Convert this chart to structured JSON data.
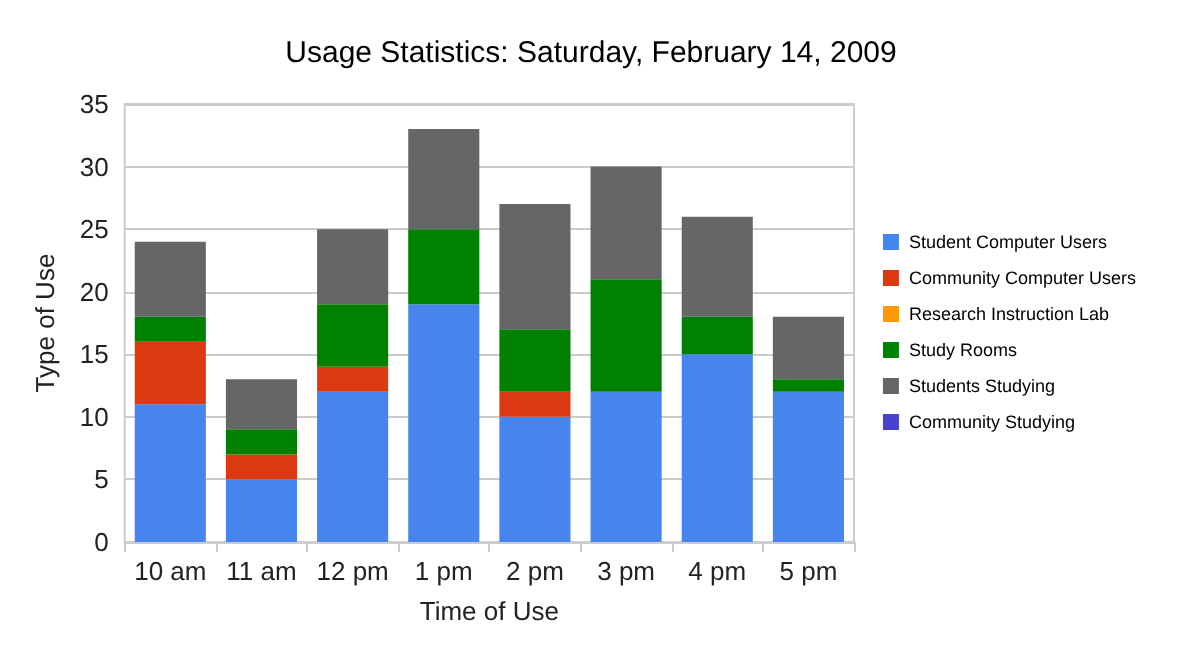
{
  "chart_data": {
    "type": "bar",
    "stacked": true,
    "title": "Usage Statistics: Saturday, February 14, 2009",
    "xlabel": "Time of Use",
    "ylabel": "Type of Use",
    "categories": [
      "10 am",
      "11 am",
      "12 pm",
      "1 pm",
      "2 pm",
      "3 pm",
      "4 pm",
      "5 pm"
    ],
    "series": [
      {
        "name": "Student Computer Users",
        "color": "#4684ee",
        "values": [
          11,
          5,
          12,
          19,
          10,
          12,
          15,
          12
        ]
      },
      {
        "name": "Community Computer Users",
        "color": "#dc3912",
        "values": [
          5,
          2,
          2,
          0,
          2,
          0,
          0,
          0
        ]
      },
      {
        "name": "Research Instruction Lab",
        "color": "#ff9900",
        "values": [
          0,
          0,
          0,
          0,
          0,
          0,
          0,
          0
        ]
      },
      {
        "name": "Study Rooms",
        "color": "#008000",
        "values": [
          2,
          2,
          5,
          6,
          5,
          9,
          3,
          1
        ]
      },
      {
        "name": "Students Studying",
        "color": "#666666",
        "values": [
          6,
          4,
          6,
          8,
          10,
          9,
          8,
          5
        ]
      },
      {
        "name": "Community Studying",
        "color": "#4942cc",
        "values": [
          0,
          0,
          0,
          0,
          0,
          0,
          0,
          0
        ]
      }
    ],
    "ylim": [
      0,
      35
    ],
    "yticks": [
      0,
      5,
      10,
      15,
      20,
      25,
      30,
      35
    ],
    "grid": "y",
    "legend": "right"
  }
}
